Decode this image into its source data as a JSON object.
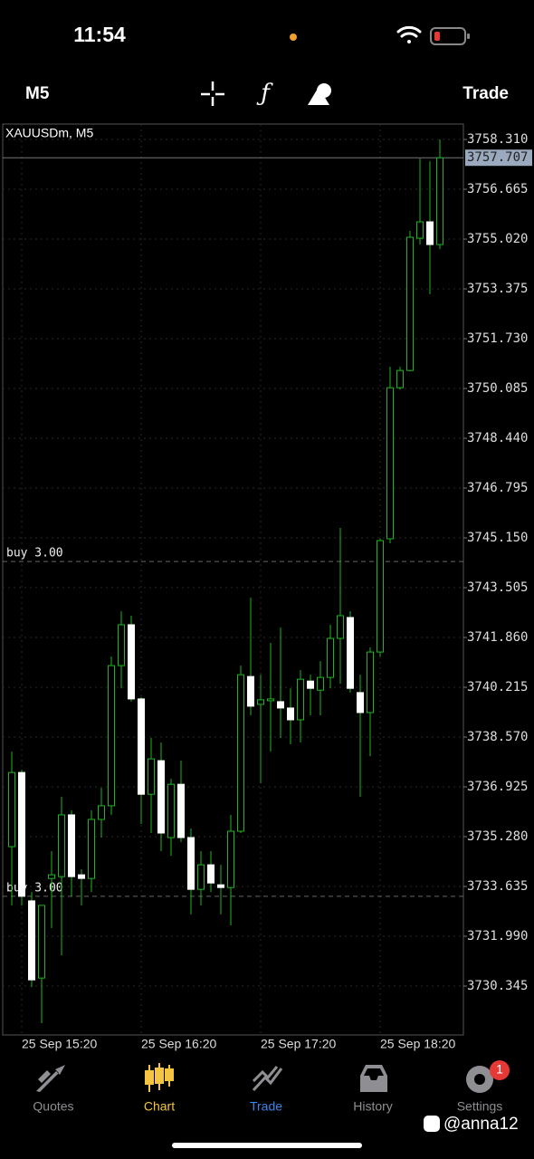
{
  "status_bar": {
    "time": "11:54"
  },
  "toolbar": {
    "timeframe": "M5",
    "action": "Trade"
  },
  "chart_data": {
    "type": "candlestick",
    "title": "XAUUSDm, M5",
    "categories": [
      null,
      "25 Sep 15:20",
      null,
      null,
      null,
      null,
      null,
      null,
      null,
      null,
      null,
      null,
      null,
      "25 Sep 16:20",
      null,
      null,
      null,
      null,
      null,
      null,
      null,
      null,
      null,
      null,
      null,
      "25 Sep 17:20",
      null,
      null,
      null,
      null,
      null,
      null,
      null,
      null,
      null,
      null,
      null,
      "25 Sep 18:20",
      null,
      null,
      null,
      null,
      null,
      null
    ],
    "open": [
      3734.95,
      3737.4,
      3733.16,
      3730.61,
      3733.9,
      3733.96,
      3736.0,
      3734.02,
      3733.9,
      3735.85,
      3736.3,
      3740.93,
      3742.28,
      3739.83,
      3736.68,
      3737.79,
      3735.25,
      3737.01,
      3735.25,
      3733.54,
      3734.35,
      3733.69,
      3733.6,
      3735.46,
      3740.57,
      3739.65,
      3739.77,
      3739.74,
      3739.53,
      3739.14,
      3740.42,
      3740.12,
      3740.54,
      3741.83,
      3742.52,
      3740.04,
      3739.38,
      3741.38,
      3745.12,
      3750.11,
      3750.68,
      3755.05,
      3755.59,
      3754.84
    ],
    "high": [
      3738.09,
      3737.49,
      3733.45,
      3733.01,
      3734.8,
      3736.6,
      3736.15,
      3734.2,
      3736.15,
      3736.89,
      3741.23,
      3742.73,
      3742.58,
      3739.89,
      3738.54,
      3738.39,
      3737.19,
      3737.79,
      3735.55,
      3734.8,
      3734.8,
      3734.35,
      3736.0,
      3740.93,
      3743.18,
      3740.63,
      3741.68,
      3742.19,
      3740.18,
      3740.78,
      3740.63,
      3741.08,
      3742.28,
      3745.48,
      3742.73,
      3740.63,
      3741.53,
      3745.12,
      3750.8,
      3750.8,
      3755.29,
      3757.68,
      3757.59,
      3758.31
    ],
    "low": [
      3733.01,
      3733.01,
      3730.31,
      3729.12,
      3732.26,
      3731.36,
      3733.31,
      3733.01,
      3733.45,
      3735.25,
      3736.0,
      3740.18,
      3739.74,
      3735.7,
      3735.4,
      3734.8,
      3734.65,
      3735.1,
      3732.71,
      3733.01,
      3733.45,
      3732.71,
      3732.35,
      3735.4,
      3739.29,
      3737.04,
      3738.09,
      3738.54,
      3738.33,
      3738.39,
      3739.29,
      3739.29,
      3740.18,
      3740.33,
      3740.04,
      3736.6,
      3737.94,
      3741.23,
      3744.97,
      3750.05,
      3750.65,
      3754.84,
      3753.2,
      3754.69
    ],
    "close": [
      3737.4,
      3733.31,
      3730.55,
      3733.01,
      3734.02,
      3736.0,
      3733.96,
      3733.9,
      3735.85,
      3736.3,
      3740.93,
      3742.28,
      3739.83,
      3736.68,
      3737.85,
      3735.4,
      3737.01,
      3735.25,
      3733.54,
      3734.35,
      3733.75,
      3733.6,
      3735.46,
      3740.63,
      3739.59,
      3739.8,
      3739.83,
      3739.53,
      3739.14,
      3740.48,
      3740.18,
      3740.54,
      3741.83,
      3742.58,
      3740.18,
      3739.38,
      3741.38,
      3745.06,
      3750.11,
      3750.68,
      3755.08,
      3755.59,
      3754.84,
      3757.707
    ],
    "ylim": [
      3728.73,
      3758.82
    ],
    "yticks": [
      {
        "value": 3758.31,
        "label": "3758.310"
      },
      {
        "value": 3756.665,
        "label": "3756.665"
      },
      {
        "value": 3755.02,
        "label": "3755.020"
      },
      {
        "value": 3753.375,
        "label": "3753.375"
      },
      {
        "value": 3751.73,
        "label": "3751.730"
      },
      {
        "value": 3750.085,
        "label": "3750.085"
      },
      {
        "value": 3748.44,
        "label": "3748.440"
      },
      {
        "value": 3746.795,
        "label": "3746.795"
      },
      {
        "value": 3745.15,
        "label": "3745.150"
      },
      {
        "value": 3743.505,
        "label": "3743.505"
      },
      {
        "value": 3741.86,
        "label": "3741.860"
      },
      {
        "value": 3740.215,
        "label": "3740.215"
      },
      {
        "value": 3738.57,
        "label": "3738.570"
      },
      {
        "value": 3736.925,
        "label": "3736.925"
      },
      {
        "value": 3735.28,
        "label": "3735.280"
      },
      {
        "value": 3733.635,
        "label": "3733.635"
      },
      {
        "value": 3731.99,
        "label": "3731.990"
      },
      {
        "value": 3730.345,
        "label": "3730.345"
      }
    ],
    "current_price": 3757.707,
    "annotations": [
      {
        "label": "buy 3.00",
        "value": 3744.37
      },
      {
        "label": "buy 3.00",
        "value": 3733.31
      }
    ],
    "up_color": "#1fb51f",
    "down_color": "#ffffff",
    "grid": true
  },
  "tab_bar": {
    "tabs": [
      {
        "label": "Quotes",
        "color": "#8e8e93"
      },
      {
        "label": "Chart",
        "color": "#f5c542"
      },
      {
        "label": "Trade",
        "color": "#3a86e8"
      },
      {
        "label": "History",
        "color": "#8e8e93"
      },
      {
        "label": "Settings",
        "color": "#8e8e93"
      }
    ],
    "badge": "1"
  },
  "watermark": "@anna12"
}
